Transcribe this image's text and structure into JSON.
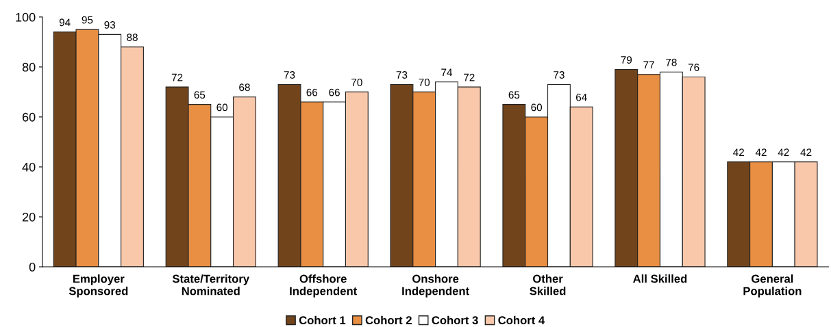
{
  "chart_data": {
    "type": "bar",
    "categories": [
      "Employer\nSponsored",
      "State/Territory\nNominated",
      "Offshore\nIndependent",
      "Onshore\nIndependent",
      "Other\nSkilled",
      "All Skilled",
      "General\nPopulation"
    ],
    "series": [
      {
        "name": "Cohort 1",
        "color": "#71441c",
        "values": [
          94,
          72,
          73,
          73,
          65,
          79,
          42
        ]
      },
      {
        "name": "Cohort 2",
        "color": "#e88f43",
        "values": [
          95,
          65,
          66,
          70,
          60,
          77,
          42
        ]
      },
      {
        "name": "Cohort 3",
        "color": "#ffffff",
        "values": [
          93,
          60,
          66,
          74,
          73,
          78,
          42
        ]
      },
      {
        "name": "Cohort 4",
        "color": "#f9c8ab",
        "values": [
          88,
          68,
          70,
          72,
          64,
          76,
          42
        ]
      }
    ],
    "ylim": [
      0,
      100
    ],
    "yticks": [
      0,
      20,
      40,
      60,
      80,
      100
    ],
    "grid": false,
    "legend": "bottom",
    "data_labels": true
  }
}
